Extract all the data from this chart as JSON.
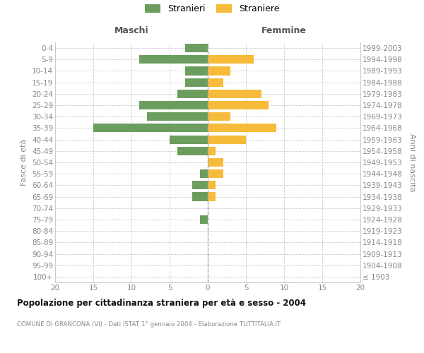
{
  "age_groups": [
    "100+",
    "95-99",
    "90-94",
    "85-89",
    "80-84",
    "75-79",
    "70-74",
    "65-69",
    "60-64",
    "55-59",
    "50-54",
    "45-49",
    "40-44",
    "35-39",
    "30-34",
    "25-29",
    "20-24",
    "15-19",
    "10-14",
    "5-9",
    "0-4"
  ],
  "birth_years": [
    "≤ 1903",
    "1904-1908",
    "1909-1913",
    "1914-1918",
    "1919-1923",
    "1924-1928",
    "1929-1933",
    "1934-1938",
    "1939-1943",
    "1944-1948",
    "1949-1953",
    "1954-1958",
    "1959-1963",
    "1964-1968",
    "1969-1973",
    "1974-1978",
    "1979-1983",
    "1984-1988",
    "1989-1993",
    "1994-1998",
    "1999-2003"
  ],
  "maschi": [
    0,
    0,
    0,
    0,
    0,
    1,
    0,
    2,
    2,
    1,
    0,
    4,
    5,
    15,
    8,
    9,
    4,
    3,
    3,
    9,
    3
  ],
  "femmine": [
    0,
    0,
    0,
    0,
    0,
    0,
    0,
    1,
    1,
    2,
    2,
    1,
    5,
    9,
    3,
    8,
    7,
    2,
    3,
    6,
    0
  ],
  "male_color": "#6b9e5e",
  "female_color": "#f6bb3a",
  "xlim_min": -20,
  "xlim_max": 20,
  "xticks": [
    -20,
    -15,
    -10,
    -5,
    0,
    5,
    10,
    15,
    20
  ],
  "xticklabels": [
    "20",
    "15",
    "10",
    "5",
    "0",
    "5",
    "10",
    "15",
    "20"
  ],
  "title": "Popolazione per cittadinanza straniera per età e sesso - 2004",
  "subtitle": "COMUNE DI GRANCONA (VI) - Dati ISTAT 1° gennaio 2004 - Elaborazione TUTTITALIA.IT",
  "ylabel_left": "Fasce di età",
  "ylabel_right": "Anni di nascita",
  "legend_male": "Stranieri",
  "legend_female": "Straniere",
  "header_male": "Maschi",
  "header_female": "Femmine",
  "bg_color": "#ffffff",
  "grid_color": "#cccccc",
  "bar_height": 0.75,
  "center_line_color": "#aaaaaa",
  "text_color": "#888888",
  "header_color": "#555555",
  "title_color": "#111111",
  "subtitle_color": "#888888"
}
